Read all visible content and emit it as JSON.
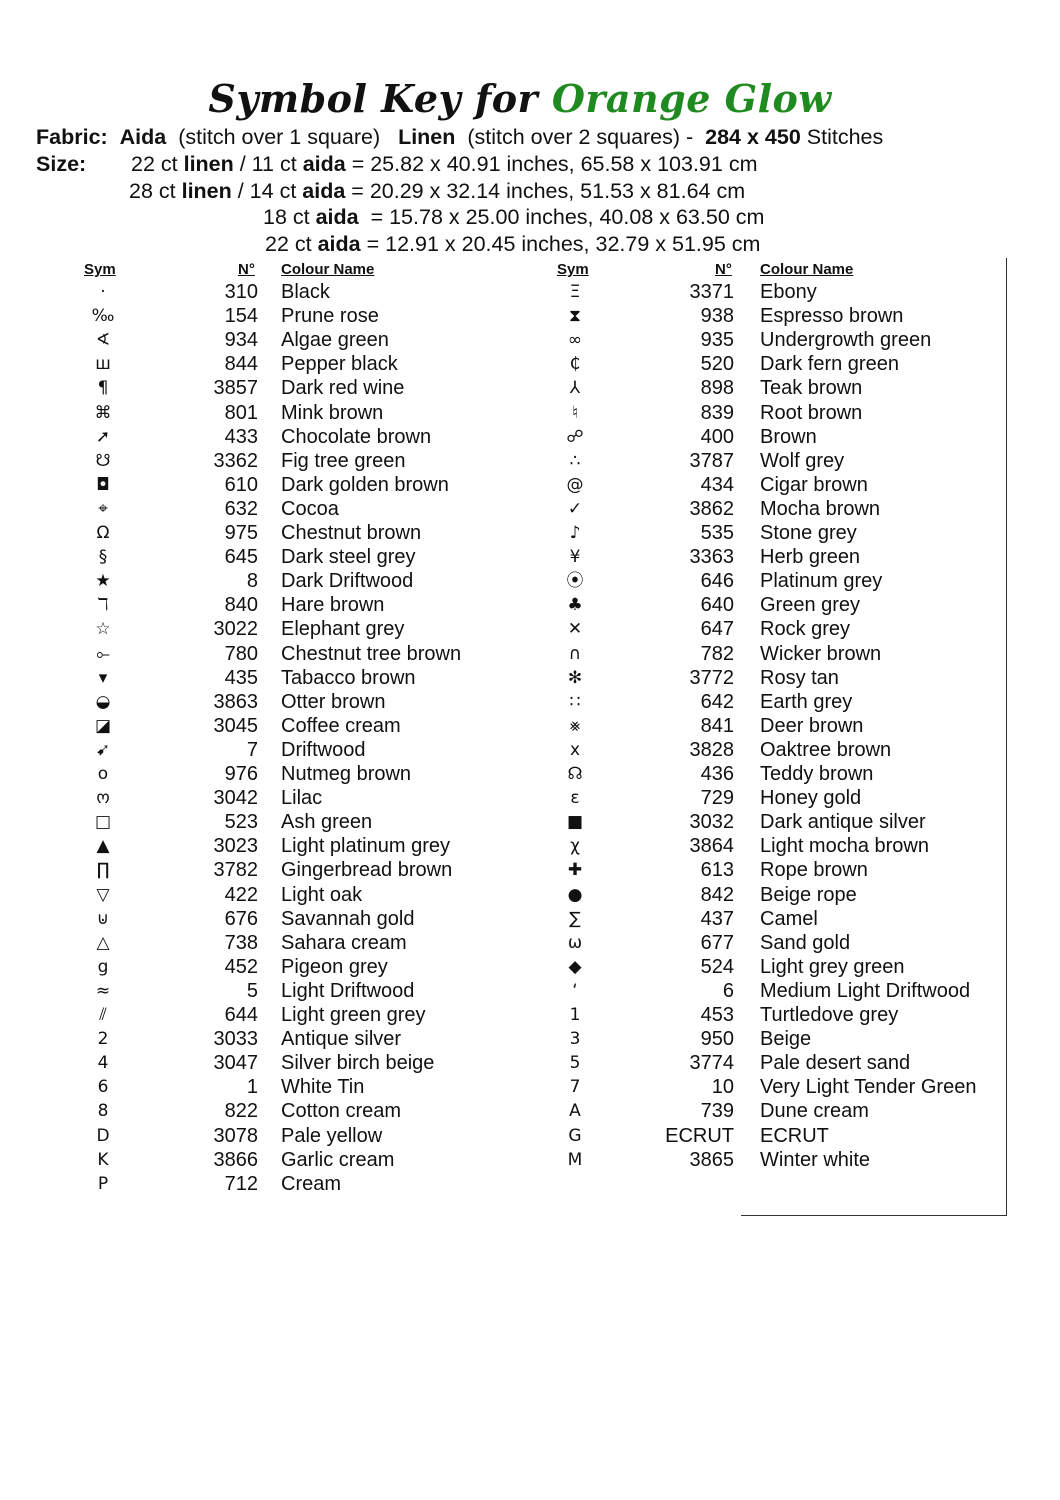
{
  "title": {
    "prefix": "Symbol Key for",
    "pattern_name": "Orange Glow",
    "accent_color": "#1f8a1f"
  },
  "fabric": {
    "label": "Fabric:",
    "aida": "Aida",
    "aida_note": "(stitch over 1 square)",
    "linen": "Linen",
    "linen_note": "(stitch over 2 squares) -",
    "stitches": "284 x 450",
    "stitches_label": "Stitches"
  },
  "size": {
    "label": "Size:",
    "lines": [
      {
        "pre": "22 ct ",
        "b1": "linen",
        "mid": " / 11 ct ",
        "b2": "aida",
        "post": " = 25.82 x 40.91 inches, 65.58 x 103.91 cm"
      },
      {
        "pre": "28 ct ",
        "b1": "linen",
        "mid": " / 14 ct ",
        "b2": "aida",
        "post": " = 20.29 x 32.14 inches, 51.53 x 81.64 cm"
      },
      {
        "pre": "18 ct ",
        "b1": "aida",
        "mid": "",
        "b2": "",
        "post": "  = 15.78 x 25.00 inches, 40.08 x 63.50 cm"
      },
      {
        "pre": "22 ct ",
        "b1": "aida",
        "mid": "",
        "b2": "",
        "post": " = 12.91 x 20.45 inches, 32.79 x 51.95 cm"
      }
    ]
  },
  "headers": {
    "sym": "Sym",
    "num": "N°",
    "name": "Colour Name"
  },
  "left": [
    [
      "·",
      "310",
      "Black"
    ],
    [
      "‰",
      "154",
      "Prune rose"
    ],
    [
      "∢",
      "934",
      "Algae green"
    ],
    [
      "ш",
      "844",
      "Pepper black"
    ],
    [
      "¶",
      "3857",
      "Dark red wine"
    ],
    [
      "⌘",
      "801",
      "Mink brown"
    ],
    [
      "➚",
      "433",
      "Chocolate brown"
    ],
    [
      "☋",
      "3362",
      "Fig tree green"
    ],
    [
      "◘",
      "610",
      "Dark golden brown"
    ],
    [
      "⌖",
      "632",
      "Cocoa"
    ],
    [
      "Ω",
      "975",
      "Chestnut brown"
    ],
    [
      "§",
      "645",
      "Dark steel grey"
    ],
    [
      "★",
      "8",
      "Dark Driftwood"
    ],
    [
      "ℸ",
      "840",
      "Hare brown"
    ],
    [
      "☆",
      "3022",
      "Elephant grey"
    ],
    [
      "⟜",
      "780",
      "Chestnut tree brown"
    ],
    [
      "▾",
      "435",
      "Tabacco brown"
    ],
    [
      "◒",
      "3863",
      "Otter brown"
    ],
    [
      "◪",
      "3045",
      "Coffee cream"
    ],
    [
      "➹",
      "7",
      "Driftwood"
    ],
    [
      "o",
      "976",
      "Nutmeg brown"
    ],
    [
      "ო",
      "3042",
      "Lilac"
    ],
    [
      "□",
      "523",
      "Ash green"
    ],
    [
      "▲",
      "3023",
      "Light platinum grey"
    ],
    [
      "∏",
      "3782",
      "Gingerbread brown"
    ],
    [
      "▽",
      "422",
      "Light oak"
    ],
    [
      "⊍",
      "676",
      "Savannah gold"
    ],
    [
      "△",
      "738",
      "Sahara cream"
    ],
    [
      "g",
      "452",
      "Pigeon grey"
    ],
    [
      "≈",
      "5",
      "Light Driftwood"
    ],
    [
      "⫽",
      "644",
      "Light green grey"
    ],
    [
      "2",
      "3033",
      "Antique silver"
    ],
    [
      "4",
      "3047",
      "Silver birch beige"
    ],
    [
      "6",
      "1",
      "White Tin"
    ],
    [
      "8",
      "822",
      "Cotton cream"
    ],
    [
      "D",
      "3078",
      "Pale yellow"
    ],
    [
      "K",
      "3866",
      "Garlic cream"
    ],
    [
      "P",
      "712",
      "Cream"
    ]
  ],
  "right": [
    [
      "Ξ",
      "3371",
      "Ebony"
    ],
    [
      "⧗",
      "938",
      "Espresso brown"
    ],
    [
      "∞",
      "935",
      "Undergrowth green"
    ],
    [
      "₵",
      "520",
      "Dark fern green"
    ],
    [
      "⅄",
      "898",
      "Teak brown"
    ],
    [
      "♮",
      "839",
      "Root brown"
    ],
    [
      "☍",
      "400",
      "Brown"
    ],
    [
      "∴",
      "3787",
      "Wolf grey"
    ],
    [
      "@",
      "434",
      "Cigar brown"
    ],
    [
      "✓",
      "3862",
      "Mocha brown"
    ],
    [
      "♪",
      "535",
      "Stone grey"
    ],
    [
      "¥",
      "3363",
      "Herb green"
    ],
    [
      "⦿",
      "646",
      "Platinum grey"
    ],
    [
      "♣",
      "640",
      "Green grey"
    ],
    [
      "✕",
      "647",
      "Rock grey"
    ],
    [
      "∩",
      "782",
      "Wicker brown"
    ],
    [
      "✻",
      "3772",
      "Rosy tan"
    ],
    [
      "∷",
      "642",
      "Earth grey"
    ],
    [
      "⨳",
      "841",
      "Deer brown"
    ],
    [
      "x",
      "3828",
      "Oaktree brown"
    ],
    [
      "☊",
      "436",
      "Teddy brown"
    ],
    [
      "ɛ",
      "729",
      "Honey gold"
    ],
    [
      "■",
      "3032",
      "Dark antique silver"
    ],
    [
      "χ",
      "3864",
      "Light mocha brown"
    ],
    [
      "✚",
      "613",
      "Rope brown"
    ],
    [
      "●",
      "842",
      "Beige rope"
    ],
    [
      "∑",
      "437",
      "Camel"
    ],
    [
      "ω",
      "677",
      "Sand gold"
    ],
    [
      "◆",
      "524",
      "Light grey green"
    ],
    [
      "‘",
      "6",
      "Medium Light Driftwood"
    ],
    [
      "1",
      "453",
      "Turtledove grey"
    ],
    [
      "3",
      "950",
      "Beige"
    ],
    [
      "5",
      "3774",
      "Pale desert sand"
    ],
    [
      "7",
      "10",
      "Very Light Tender Green"
    ],
    [
      "A",
      "739",
      "Dune cream"
    ],
    [
      "G",
      "ECRUT",
      "ECRUT"
    ],
    [
      "M",
      "3865",
      "Winter white"
    ]
  ]
}
